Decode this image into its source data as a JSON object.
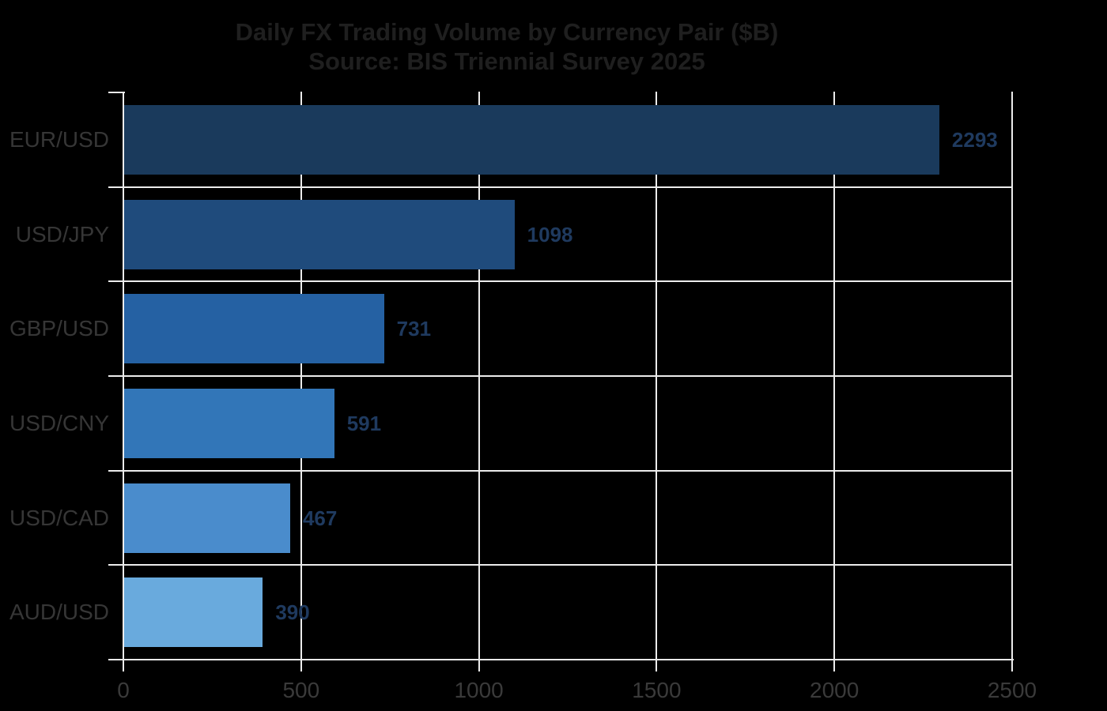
{
  "chart_data": {
    "type": "bar",
    "orientation": "horizontal",
    "title": "Daily FX Trading Volume by Currency Pair ($B)",
    "subtitle": "Source: BIS Triennial Survey 2025",
    "categories": [
      "EUR/USD",
      "USD/JPY",
      "GBP/USD",
      "USD/CNY",
      "USD/CAD",
      "AUD/USD"
    ],
    "values": [
      2293,
      1098,
      731,
      591,
      467,
      390
    ],
    "xlabel": "",
    "ylabel": "",
    "xlim": [
      0,
      2500
    ],
    "x_ticks": [
      0,
      500,
      1000,
      1500,
      2000,
      2500
    ],
    "grid": true,
    "legend": "none",
    "bar_colors": [
      "#1a3a5c",
      "#1f4b7c",
      "#2561a3",
      "#3276b8",
      "#4a8ccc",
      "#69aadd"
    ],
    "value_label_color": "#1f3a5f",
    "gridline_color": "#ececec",
    "axis_text_color": "#3a3a3a",
    "title_color": "#1f1f1f",
    "background_color": "#000000"
  }
}
